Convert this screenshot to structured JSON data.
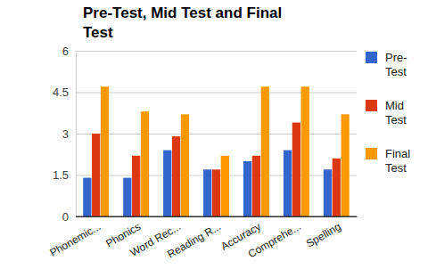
{
  "chart_data": {
    "type": "bar",
    "title": "Pre-Test, Mid Test and Final Test",
    "categories": [
      "Phonemic...",
      "Phonics",
      "Word Rec...",
      "Reading R...",
      "Accuracy",
      "Comprehe...",
      "Spelling"
    ],
    "series": [
      {
        "name": "Pre-Test",
        "color": "#3366cc",
        "values": [
          1.4,
          1.4,
          2.4,
          1.7,
          2.0,
          2.4,
          1.7
        ]
      },
      {
        "name": "Mid Test",
        "color": "#dc3912",
        "values": [
          3.0,
          2.2,
          2.9,
          1.7,
          2.2,
          3.4,
          2.1
        ]
      },
      {
        "name": "Final Test",
        "color": "#ff9900",
        "values": [
          4.7,
          3.8,
          3.7,
          2.2,
          4.7,
          4.7,
          3.7
        ]
      }
    ],
    "ylim": [
      0,
      6
    ],
    "yticks": [
      0,
      1.5,
      3,
      4.5,
      6
    ],
    "grid": true,
    "legend": "right"
  }
}
